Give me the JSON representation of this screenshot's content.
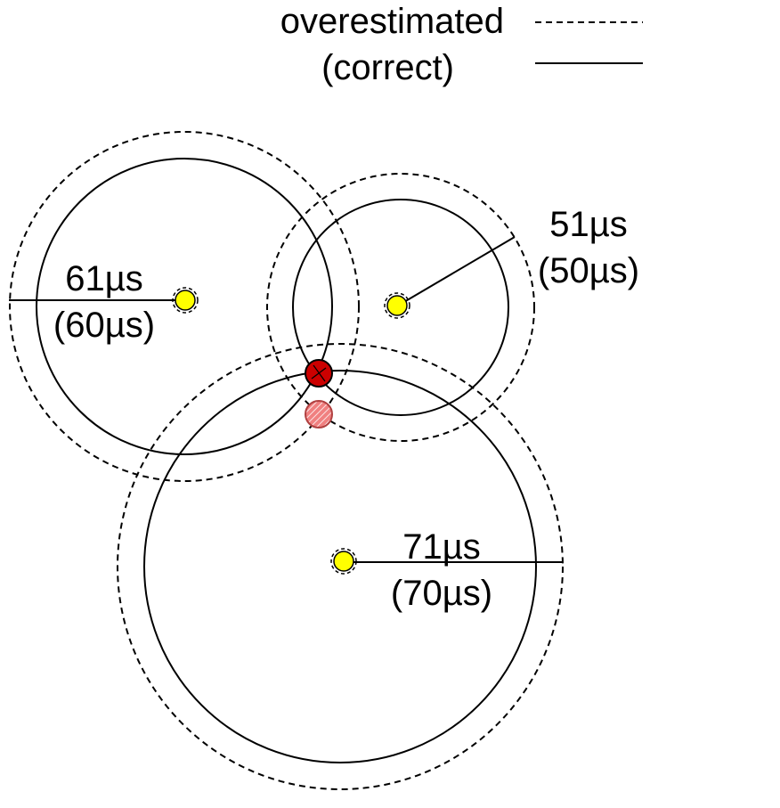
{
  "legend": {
    "dashed_label": "overestimated",
    "solid_label": "(correct)"
  },
  "anchors": [
    {
      "id": "left",
      "overestimated_label": "61µs",
      "correct_label": "(60µs)",
      "overestimated_us": 61,
      "correct_us": 60
    },
    {
      "id": "right",
      "overestimated_label": "51µs",
      "correct_label": "(50µs)",
      "overestimated_us": 51,
      "correct_us": 50
    },
    {
      "id": "bottom",
      "overestimated_label": "71µs",
      "correct_label": "(70µs)",
      "overestimated_us": 71,
      "correct_us": 70
    }
  ],
  "colors": {
    "anchor": "#ffff00",
    "true_position": "#cc0000",
    "estimated_position": "#f08080",
    "stroke": "#000000"
  }
}
